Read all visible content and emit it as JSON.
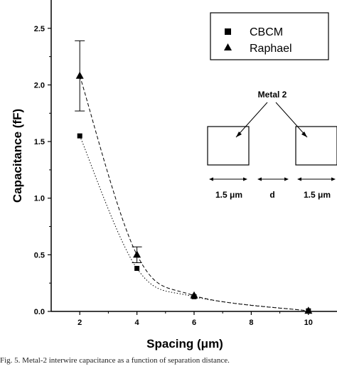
{
  "chart_data": {
    "type": "scatter",
    "title": "",
    "xlabel": "Spacing (μm)",
    "ylabel": "Capacitance (fF)",
    "xlim": [
      1,
      11
    ],
    "ylim": [
      0,
      2.75
    ],
    "x_ticks": [
      2,
      4,
      6,
      8,
      10
    ],
    "y_ticks": [
      0.0,
      0.5,
      1.0,
      1.5,
      2.0,
      2.5
    ],
    "x_tick_labels": [
      "2",
      "4",
      "6",
      "8",
      "10"
    ],
    "y_tick_labels": [
      "0.0",
      "0.5",
      "1.0",
      "1.5",
      "2.0",
      "2.5"
    ],
    "legend_position": "top-right",
    "grid": false,
    "series": [
      {
        "name": "CBCM",
        "marker": "square",
        "line_style": "dotted",
        "points": [
          {
            "x": 2,
            "y": 1.55
          },
          {
            "x": 4,
            "y": 0.38
          },
          {
            "x": 6,
            "y": 0.13
          },
          {
            "x": 10,
            "y": 0.005
          }
        ]
      },
      {
        "name": "Raphael",
        "marker": "triangle",
        "line_style": "dashed",
        "points": [
          {
            "x": 2,
            "y": 2.08,
            "err_low": 1.77,
            "err_high": 2.39
          },
          {
            "x": 4,
            "y": 0.5,
            "err_low": 0.43,
            "err_high": 0.57
          },
          {
            "x": 6,
            "y": 0.14
          },
          {
            "x": 10,
            "y": 0.005
          }
        ]
      }
    ],
    "inset": {
      "label": "Metal 2",
      "width_left": "1.5 μm",
      "spacing": "d",
      "width_right": "1.5 μm"
    }
  },
  "caption": "Fig. 5.   Metal-2 interwire capacitance as a function of separation distance."
}
